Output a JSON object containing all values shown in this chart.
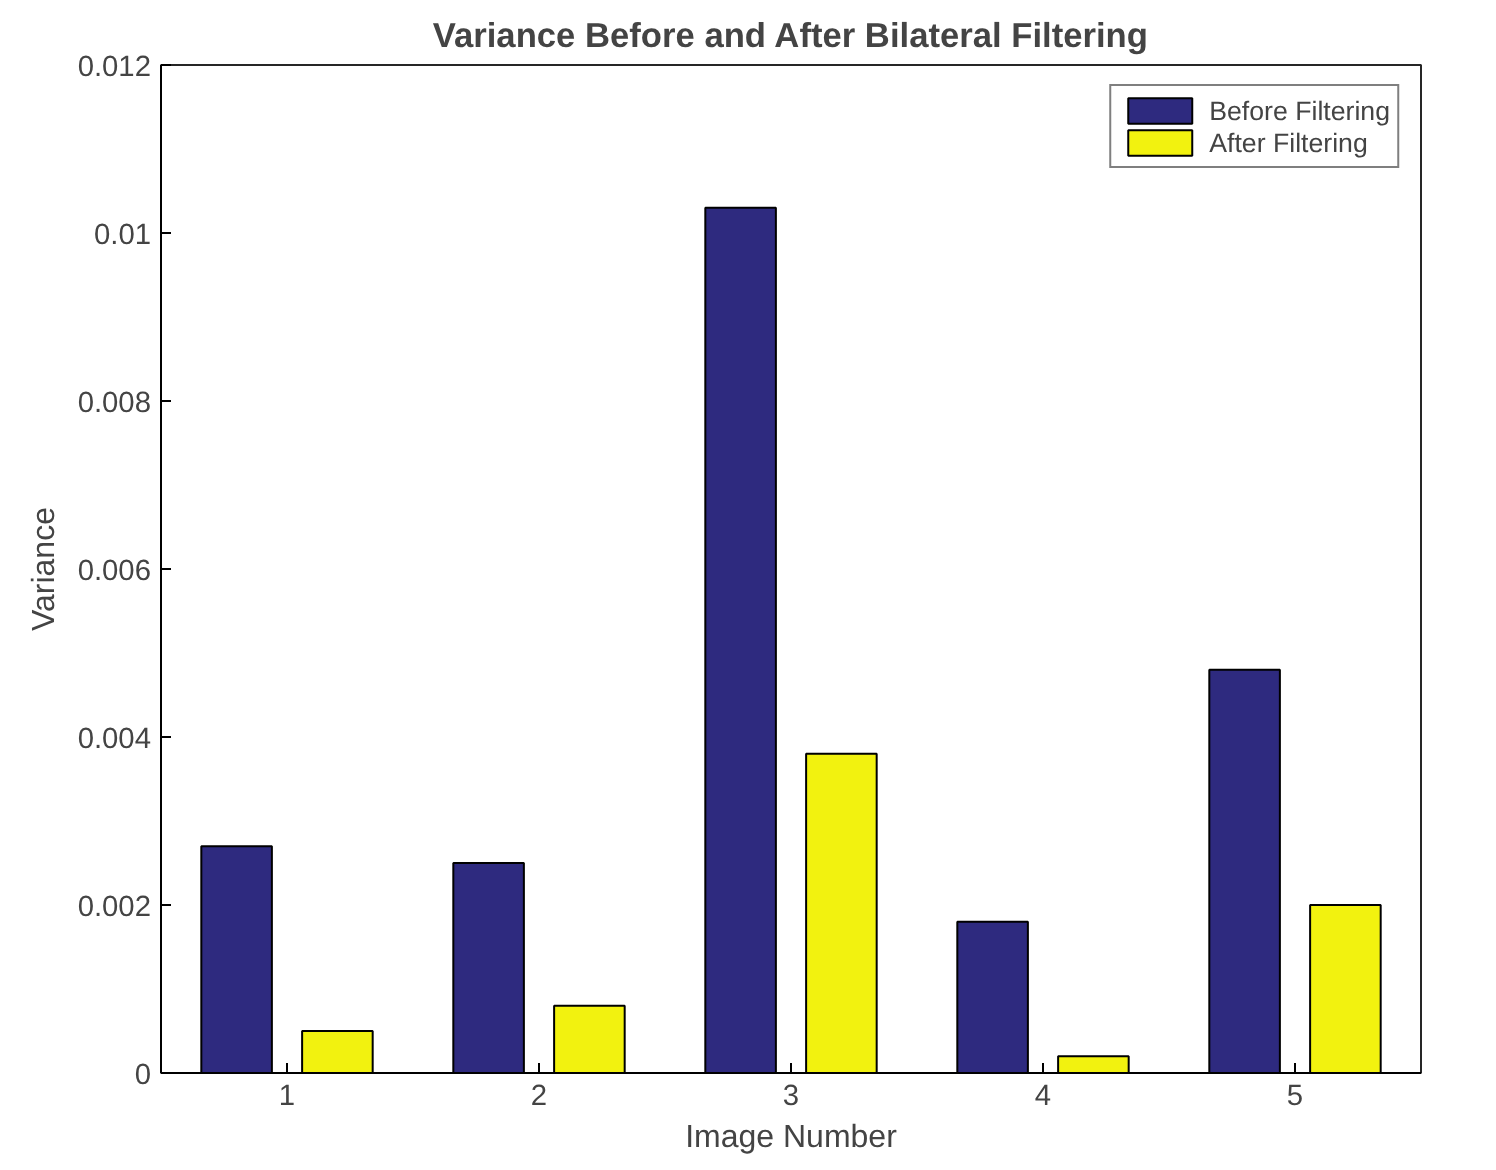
{
  "chart_data": {
    "type": "bar",
    "title": "Variance Before and After Bilateral Filtering",
    "xlabel": "Image Number",
    "ylabel": "Variance",
    "categories": [
      "1",
      "2",
      "3",
      "4",
      "5"
    ],
    "series": [
      {
        "name": "Before Filtering",
        "color": "#2e2a7f",
        "values": [
          0.0027,
          0.0025,
          0.0103,
          0.0018,
          0.0048
        ]
      },
      {
        "name": "After Filtering",
        "color": "#f2f20f",
        "values": [
          0.0005,
          0.0008,
          0.0038,
          0.0002,
          0.002
        ]
      }
    ],
    "ylim": [
      0,
      0.012
    ],
    "yticks": [
      0,
      0.002,
      0.004,
      0.006,
      0.008,
      0.01,
      0.012
    ],
    "grid": false,
    "legend": "top right"
  }
}
